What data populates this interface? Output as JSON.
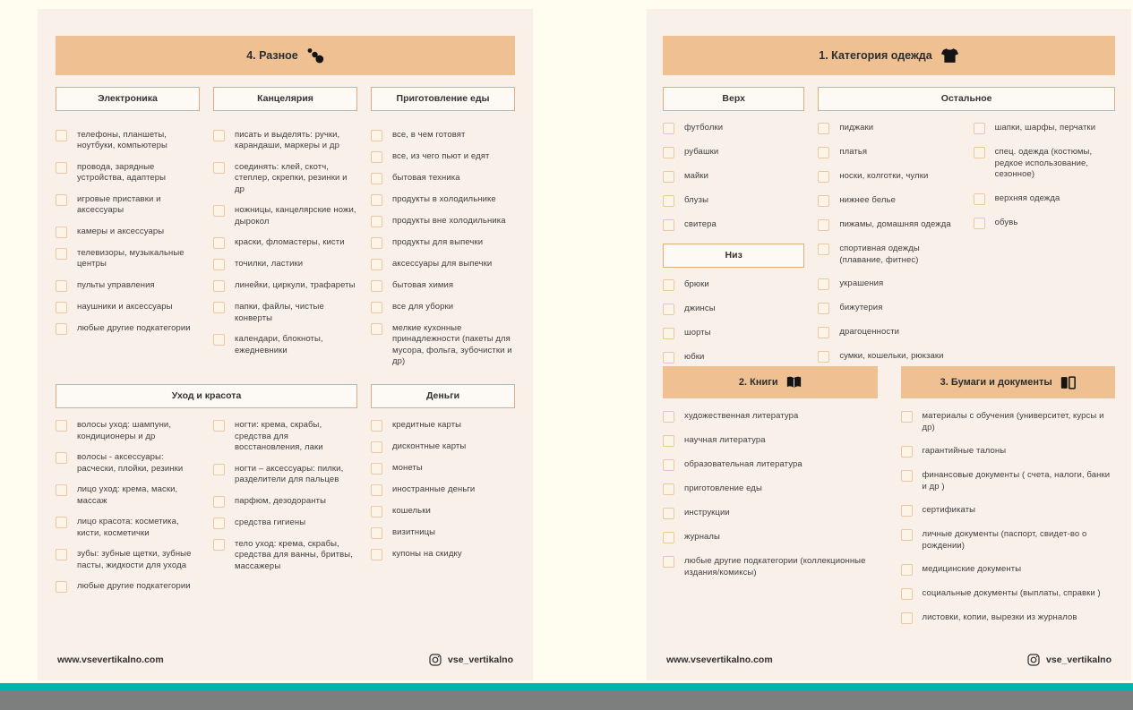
{
  "colors": {
    "canvas_bg": "#fffdf0",
    "page_bg": "#faf0ea",
    "band_bg": "#eec092",
    "box_border": "#dcae81",
    "checkbox_border": "#eac8a0",
    "text": "#3f3f3f",
    "teal_bar": "#00b4b6",
    "gray_bar": "#7d7f7e"
  },
  "icons": {
    "misc_band": "dots-cluster",
    "clothes_band": "tshirt",
    "books_band": "open-book",
    "papers_band": "documents",
    "footer": "instagram"
  },
  "footer": {
    "website": "www.vsevertikalno.com",
    "instagram": "vse_vertikalno"
  },
  "left_page": {
    "title": "4. Разное",
    "electronics": {
      "header": "Электроника",
      "items": [
        "телефоны, планшеты, ноутбуки, компьютеры",
        "провода, зарядные устройства, адаптеры",
        "игровые приставки и аксессуары",
        "камеры и аксессуары",
        "телевизоры, музыкальные центры",
        "пульты управления",
        "наушники и аксессуары",
        "любые другие подкатегории"
      ]
    },
    "stationery": {
      "header": "Канцелярия",
      "items": [
        "писать и выделять: ручки, карандаши, маркеры и др",
        "соединять: клей, скотч, степлер, скрепки, резинки и др",
        "ножницы, канцелярские ножи, дырокол",
        "краски, фломастеры, кисти",
        "точилки, ластики",
        "линейки, циркули, трафареты",
        "папки, файлы, чистые конверты",
        "календари, блокноты, ежедневники"
      ]
    },
    "cooking": {
      "header": "Приготовление еды",
      "items": [
        "все, в чем готовят",
        "все, из чего пьют и едят",
        "бытовая техника",
        "продукты в холодильнике",
        "продукты вне холодильника",
        "продукты для выпечки",
        "аксессуары для выпечки",
        "бытовая химия",
        "все для уборки",
        "мелкие кухонные принадлежности (пакеты для мусора, фольга, зубочистки и др)"
      ]
    },
    "beauty": {
      "header": "Уход и красота",
      "items_col1": [
        "волосы уход: шампуни, кондиционеры и др",
        "волосы - аксессуары: расчески, плойки, резинки",
        "лицо уход: крема, маски, массаж",
        "лицо красота: косметика, кисти, косметички",
        "зубы: зубные щетки, зубные пасты, жидкости для ухода",
        "любые другие подкатегории"
      ],
      "items_col2": [
        "ногти: крема, скрабы, средства для восстановления, лаки",
        "ногти – аксессуары: пилки, разделители для пальцев",
        "парфюм, дезодоранты",
        "средства гигиены",
        "тело уход: крема, скрабы, средства для ванны, бритвы, массажеры"
      ]
    },
    "money": {
      "header": "Деньги",
      "items": [
        "кредитные карты",
        "дисконтные карты",
        "монеты",
        "иностранные деньги",
        "кошельки",
        "визитницы",
        "купоны на скидку"
      ]
    }
  },
  "right_page": {
    "title": "1. Категория одежда",
    "top": {
      "header": "Верх",
      "items": [
        "футболки",
        "рубашки",
        "майки",
        "блузы",
        "свитера"
      ]
    },
    "bottom": {
      "header": "Низ",
      "items": [
        "брюки",
        "джинсы",
        "шорты",
        "юбки"
      ]
    },
    "other": {
      "header": "Остальное",
      "items_col1": [
        "пиджаки",
        "платья",
        "носки, колготки, чулки",
        "нижнее белье",
        "пижамы, домашняя одежда",
        "спортивная одежды (плавание, фитнес)",
        "украшения",
        "бижутерия",
        "драгоценности",
        "сумки, кошельки, рюкзаки"
      ],
      "items_col2": [
        "шапки, шарфы, перчатки",
        "спец. одежда (костюмы, редкое использование, сезонное)",
        "верхняя одежда",
        "обувь"
      ]
    },
    "books": {
      "title": "2. Книги",
      "items": [
        "художественная литература",
        "научная литература",
        "образовательная литература",
        "приготовление еды",
        "инструкции",
        "журналы",
        "любые другие подкатегории (коллекционные издания/комиксы)"
      ]
    },
    "papers": {
      "title": "3. Бумаги и документы",
      "items": [
        "материалы с обучения (университет, курсы и др)",
        "гарантийные талоны",
        "финансовые документы ( счета, налоги, банки и др )",
        "сертификаты",
        "личные документы (паспорт, свидет-во о рождении)",
        "медицинские документы",
        "социальные документы (выплаты, справки )",
        "листовки, копии, вырезки из журналов"
      ]
    }
  }
}
